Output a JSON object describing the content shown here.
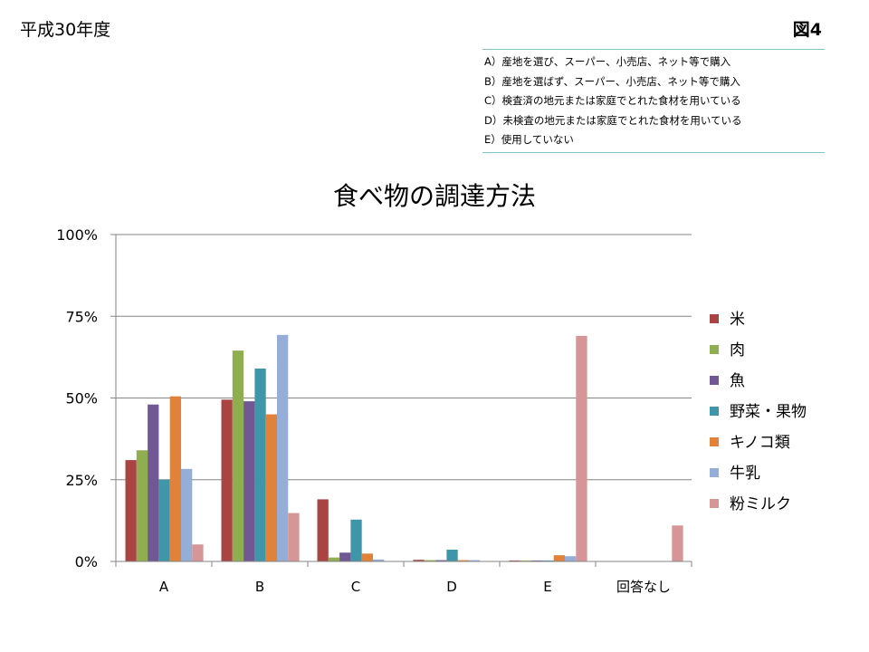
{
  "header": {
    "era": "平成30年度",
    "figure": "図4"
  },
  "definitions": [
    "A）産地を選び、スーパー、小売店、ネット等で購入",
    "B）産地を選ばず、スーパー、小売店、ネット等で購入",
    "C）検査済の地元または家庭でとれた食材を用いている",
    "D）未検査の地元または家庭でとれた食材を用いている",
    "E）使用していない"
  ],
  "chart_data": {
    "type": "bar",
    "title": "食べ物の調達方法",
    "categories": [
      "A",
      "B",
      "C",
      "D",
      "E",
      "回答なし"
    ],
    "ylim": [
      0,
      100
    ],
    "yticks": [
      "0%",
      "25%",
      "50%",
      "75%",
      "100%"
    ],
    "grid": true,
    "legend_position": "right",
    "series": [
      {
        "name": "米",
        "color": "#A94442",
        "values": [
          31,
          49.5,
          19,
          0.5,
          0.3,
          0
        ]
      },
      {
        "name": "肉",
        "color": "#8FAE4F",
        "values": [
          34,
          64.5,
          1.2,
          0.4,
          0.3,
          0
        ]
      },
      {
        "name": "魚",
        "color": "#715894",
        "values": [
          48,
          49,
          2.7,
          0.4,
          0.3,
          0
        ]
      },
      {
        "name": "野菜・果物",
        "color": "#3E96A8",
        "values": [
          25,
          59,
          12.8,
          3.6,
          0.3,
          0
        ]
      },
      {
        "name": "キノコ類",
        "color": "#E0823A",
        "values": [
          50.5,
          45,
          2.4,
          0.4,
          1.9,
          0
        ]
      },
      {
        "name": "牛乳",
        "color": "#94AED8",
        "values": [
          28.3,
          69.3,
          0.6,
          0.4,
          1.6,
          0
        ]
      },
      {
        "name": "粉ミルク",
        "color": "#D69596",
        "values": [
          5.2,
          14.8,
          0,
          0,
          69,
          11
        ]
      }
    ]
  }
}
